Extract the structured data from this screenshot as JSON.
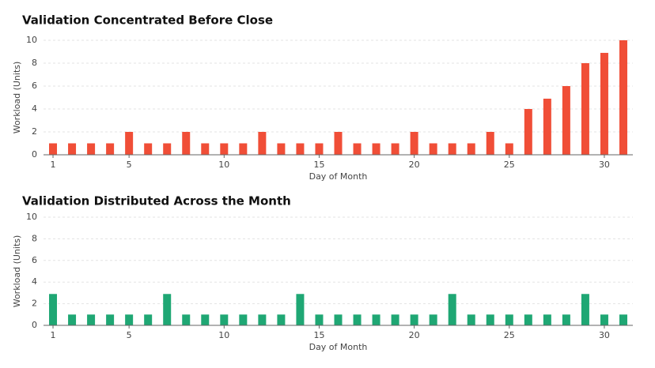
{
  "chart_data": [
    {
      "type": "bar",
      "title": "Validation Concentrated Before Close",
      "x_label": "Day of Month",
      "y_label": "Workload (Units)",
      "x": [
        1,
        2,
        3,
        4,
        5,
        6,
        7,
        8,
        9,
        10,
        11,
        12,
        13,
        14,
        15,
        16,
        17,
        18,
        19,
        20,
        21,
        22,
        23,
        24,
        25,
        26,
        27,
        28,
        29,
        30,
        31
      ],
      "values": [
        1,
        1,
        1,
        1,
        2,
        1,
        1,
        2,
        1,
        1,
        1,
        2,
        1,
        1,
        1,
        2,
        1,
        1,
        1,
        2,
        1,
        1,
        1,
        2,
        1,
        4,
        4.9,
        6,
        8,
        8.9,
        10
      ],
      "color": "#f04e37",
      "xlim": [
        0.5,
        31.5
      ],
      "xticks": [
        1,
        5,
        10,
        15,
        20,
        25,
        30
      ],
      "ylim": [
        0,
        10
      ],
      "yticks": [
        0,
        2,
        4,
        6,
        8,
        10
      ],
      "grid": true
    },
    {
      "type": "bar",
      "title": "Validation Distributed Across the Month",
      "x_label": "Day of Month",
      "y_label": "Workload (Units)",
      "x": [
        1,
        2,
        3,
        4,
        5,
        6,
        7,
        8,
        9,
        10,
        11,
        12,
        13,
        14,
        15,
        16,
        17,
        18,
        19,
        20,
        21,
        22,
        23,
        24,
        25,
        26,
        27,
        28,
        29,
        30,
        31
      ],
      "values": [
        2.9,
        1,
        1,
        1,
        1,
        1,
        2.9,
        1,
        1,
        1,
        1,
        1,
        1,
        2.9,
        1,
        1,
        1,
        1,
        1,
        1,
        1,
        2.9,
        1,
        1,
        1,
        1,
        1,
        1,
        2.9,
        1,
        1
      ],
      "color": "#1fa774",
      "xlim": [
        0.5,
        31.5
      ],
      "xticks": [
        1,
        5,
        10,
        15,
        20,
        25,
        30
      ],
      "ylim": [
        0,
        10
      ],
      "yticks": [
        0,
        2,
        4,
        6,
        8,
        10
      ],
      "grid": true
    }
  ]
}
